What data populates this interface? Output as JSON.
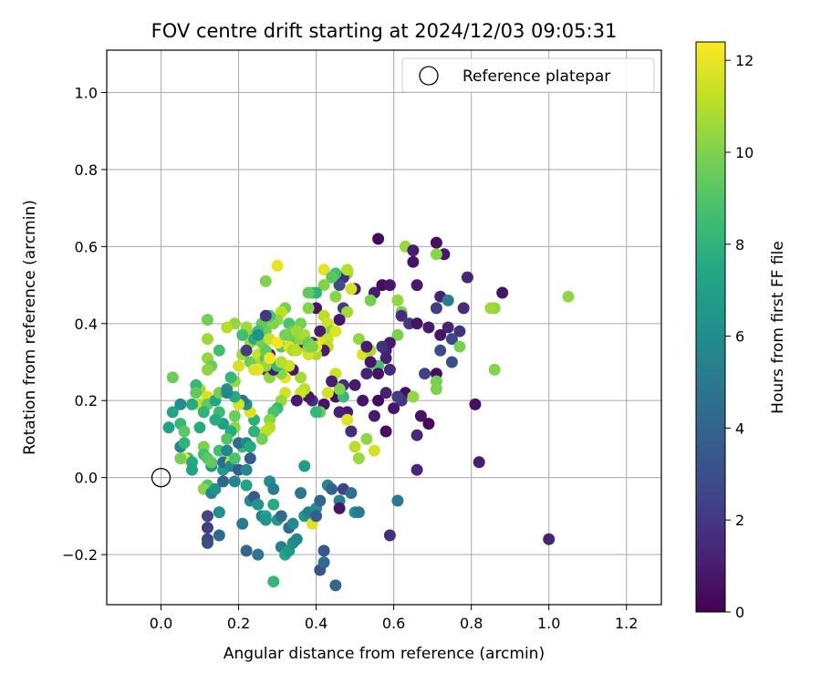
{
  "chart_data": {
    "type": "scatter",
    "title": "FOV centre drift starting at 2024/12/03 09:05:31",
    "xlabel": "Angular distance from reference (arcmin)",
    "ylabel": "Rotation from reference (arcmin)",
    "xlim": [
      -0.14,
      1.29
    ],
    "ylim": [
      -0.33,
      1.11
    ],
    "xticks": [
      0.0,
      0.2,
      0.4,
      0.6,
      0.8,
      1.0,
      1.2
    ],
    "xtick_labels": [
      "0.0",
      "0.2",
      "0.4",
      "0.6",
      "0.8",
      "1.0",
      "1.2"
    ],
    "yticks": [
      -0.2,
      0.0,
      0.2,
      0.4,
      0.6,
      0.8,
      1.0
    ],
    "ytick_labels": [
      "−0.2",
      "0.0",
      "0.2",
      "0.4",
      "0.6",
      "0.8",
      "1.0"
    ],
    "grid": true,
    "legend": {
      "placement": "top-right",
      "entries": [
        "Reference platepar"
      ]
    },
    "reference_point": {
      "x": 0.0,
      "y": 0.0
    },
    "colorbar": {
      "label": "Hours from first FF file",
      "colormap": "viridis",
      "range": [
        0,
        12.4
      ],
      "ticks": [
        0,
        2,
        4,
        6,
        8,
        10,
        12
      ],
      "tick_labels": [
        "0",
        "2",
        "4",
        "6",
        "8",
        "10",
        "12"
      ]
    },
    "points_xyc": [
      [
        0.56,
        0.62,
        0.3
      ],
      [
        0.63,
        0.6,
        10.5
      ],
      [
        0.71,
        0.61,
        0.5
      ],
      [
        0.65,
        0.59,
        1.0
      ],
      [
        0.73,
        0.58,
        0.8
      ],
      [
        0.65,
        0.56,
        0.6
      ],
      [
        0.71,
        0.58,
        10.2
      ],
      [
        0.79,
        0.52,
        1.4
      ],
      [
        0.72,
        0.47,
        1.2
      ],
      [
        0.74,
        0.46,
        5.2
      ],
      [
        0.88,
        0.48,
        0.7
      ],
      [
        0.86,
        0.44,
        10.4
      ],
      [
        0.85,
        0.44,
        10.6
      ],
      [
        1.05,
        0.47,
        10.3
      ],
      [
        0.78,
        0.44,
        1.6
      ],
      [
        0.71,
        0.44,
        2.2
      ],
      [
        0.66,
        0.5,
        0.9
      ],
      [
        0.57,
        0.5,
        0.4
      ],
      [
        0.59,
        0.5,
        0.8
      ],
      [
        0.55,
        0.48,
        1.0
      ],
      [
        0.61,
        0.46,
        10.4
      ],
      [
        0.62,
        0.43,
        9.8
      ],
      [
        0.62,
        0.42,
        1.5
      ],
      [
        0.64,
        0.4,
        2.0
      ],
      [
        0.66,
        0.4,
        0.6
      ],
      [
        0.69,
        0.39,
        0.9
      ],
      [
        0.74,
        0.39,
        1.3
      ],
      [
        0.77,
        0.38,
        1.8
      ],
      [
        0.72,
        0.37,
        0.7
      ],
      [
        0.75,
        0.36,
        2.6
      ],
      [
        0.61,
        0.37,
        9.9
      ],
      [
        0.58,
        0.33,
        1.2
      ],
      [
        0.59,
        0.35,
        0.9
      ],
      [
        0.57,
        0.34,
        1.7
      ],
      [
        0.72,
        0.33,
        2.8
      ],
      [
        0.77,
        0.34,
        9.9
      ],
      [
        0.75,
        0.3,
        3.0
      ],
      [
        0.58,
        0.31,
        1.1
      ],
      [
        0.55,
        0.29,
        9.6
      ],
      [
        0.56,
        0.29,
        8.8
      ],
      [
        0.59,
        0.28,
        1.5
      ],
      [
        0.68,
        0.27,
        2.3
      ],
      [
        0.71,
        0.27,
        0.5
      ],
      [
        0.71,
        0.25,
        9.8
      ],
      [
        0.71,
        0.23,
        10.0
      ],
      [
        0.63,
        0.22,
        0.4
      ],
      [
        0.65,
        0.21,
        10.4
      ],
      [
        0.6,
        0.18,
        0.7
      ],
      [
        0.62,
        0.2,
        1.9
      ],
      [
        0.67,
        0.16,
        0.6
      ],
      [
        0.69,
        0.14,
        0.3
      ],
      [
        0.66,
        0.11,
        1.5
      ],
      [
        0.81,
        0.19,
        0.5
      ],
      [
        0.82,
        0.04,
        1.0
      ],
      [
        0.86,
        0.28,
        10.1
      ],
      [
        0.66,
        0.02,
        1.3
      ],
      [
        0.61,
        0.21,
        2.2
      ],
      [
        1.0,
        -0.16,
        1.2
      ],
      [
        0.59,
        -0.15,
        1.7
      ],
      [
        0.61,
        -0.06,
        5.0
      ],
      [
        0.58,
        0.12,
        0.4
      ],
      [
        0.55,
        0.16,
        0.9
      ],
      [
        0.55,
        0.07,
        11.6
      ],
      [
        0.53,
        0.1,
        10.3
      ],
      [
        0.51,
        0.05,
        10.5
      ],
      [
        0.48,
        0.17,
        0.9
      ],
      [
        0.46,
        0.17,
        1.1
      ],
      [
        0.45,
        0.21,
        0.5
      ],
      [
        0.5,
        0.24,
        0.9
      ],
      [
        0.47,
        0.24,
        1.6
      ],
      [
        0.52,
        0.2,
        0.7
      ],
      [
        0.56,
        0.2,
        0.3
      ],
      [
        0.58,
        0.22,
        1.2
      ],
      [
        0.51,
        0.36,
        10.4
      ],
      [
        0.52,
        0.32,
        11.7
      ],
      [
        0.54,
        0.33,
        10.8
      ],
      [
        0.53,
        0.34,
        1.0
      ],
      [
        0.54,
        0.3,
        0.7
      ],
      [
        0.56,
        0.27,
        0.6
      ],
      [
        0.53,
        0.27,
        1.2
      ],
      [
        0.54,
        0.46,
        9.8
      ],
      [
        0.5,
        0.49,
        1.0
      ],
      [
        0.49,
        0.49,
        11.6
      ],
      [
        0.48,
        0.53,
        10.5
      ],
      [
        0.47,
        0.52,
        1.6
      ],
      [
        0.48,
        0.54,
        11.0
      ],
      [
        0.46,
        0.5,
        2.8
      ],
      [
        0.45,
        0.53,
        8.6
      ],
      [
        0.42,
        0.54,
        11.9
      ],
      [
        0.44,
        0.52,
        9.2
      ],
      [
        0.42,
        0.5,
        10.1
      ],
      [
        0.39,
        0.48,
        9.2
      ],
      [
        0.4,
        0.48,
        8.0
      ],
      [
        0.4,
        0.44,
        0.7
      ],
      [
        0.38,
        0.44,
        10.1
      ],
      [
        0.45,
        0.47,
        10.2
      ],
      [
        0.47,
        0.44,
        2.1
      ],
      [
        0.48,
        0.43,
        10.7
      ],
      [
        0.42,
        0.42,
        11.1
      ],
      [
        0.43,
        0.4,
        11.5
      ],
      [
        0.46,
        0.41,
        0.8
      ],
      [
        0.41,
        0.38,
        1.1
      ],
      [
        0.44,
        0.38,
        10.0
      ],
      [
        0.43,
        0.36,
        11.4
      ],
      [
        0.45,
        0.38,
        11.8
      ],
      [
        0.41,
        0.35,
        12.0
      ],
      [
        0.43,
        0.34,
        11.2
      ],
      [
        0.42,
        0.33,
        1.0
      ],
      [
        0.4,
        0.32,
        10.8
      ],
      [
        0.38,
        0.32,
        11.6
      ],
      [
        0.36,
        0.34,
        11.0
      ],
      [
        0.34,
        0.36,
        9.6
      ],
      [
        0.36,
        0.4,
        9.8
      ],
      [
        0.33,
        0.4,
        8.8
      ],
      [
        0.32,
        0.44,
        9.8
      ],
      [
        0.31,
        0.43,
        11.2
      ],
      [
        0.3,
        0.41,
        10.4
      ],
      [
        0.29,
        0.4,
        10.0
      ],
      [
        0.28,
        0.42,
        8.8
      ],
      [
        0.27,
        0.38,
        9.6
      ],
      [
        0.26,
        0.4,
        9.4
      ],
      [
        0.24,
        0.37,
        10.4
      ],
      [
        0.23,
        0.35,
        10.7
      ],
      [
        0.22,
        0.39,
        10.6
      ],
      [
        0.21,
        0.37,
        8.6
      ],
      [
        0.19,
        0.4,
        10.4
      ],
      [
        0.17,
        0.39,
        11.0
      ],
      [
        0.15,
        0.33,
        8.6
      ],
      [
        0.12,
        0.41,
        9.8
      ],
      [
        0.12,
        0.36,
        10.6
      ],
      [
        0.12,
        0.31,
        10.4
      ],
      [
        0.13,
        0.29,
        9.6
      ],
      [
        0.12,
        0.28,
        10.3
      ],
      [
        0.1,
        0.23,
        10.6
      ],
      [
        0.09,
        0.24,
        8.2
      ],
      [
        0.09,
        0.22,
        9.4
      ],
      [
        0.1,
        0.19,
        11.2
      ],
      [
        0.12,
        0.21,
        11.6
      ],
      [
        0.12,
        0.19,
        9.4
      ],
      [
        0.11,
        0.17,
        8.0
      ],
      [
        0.08,
        0.19,
        7.6
      ],
      [
        0.05,
        0.19,
        6.0
      ],
      [
        0.03,
        0.17,
        7.2
      ],
      [
        0.03,
        0.26,
        9.6
      ],
      [
        0.02,
        0.13,
        7.0
      ],
      [
        0.05,
        0.14,
        8.2
      ],
      [
        0.06,
        0.12,
        9.2
      ],
      [
        0.05,
        0.08,
        5.6
      ],
      [
        0.06,
        0.09,
        8.0
      ],
      [
        0.07,
        0.05,
        8.4
      ],
      [
        0.06,
        0.05,
        12.0
      ],
      [
        0.05,
        0.05,
        9.8
      ],
      [
        0.08,
        0.04,
        7.4
      ],
      [
        0.08,
        0.02,
        7.2
      ],
      [
        0.1,
        0.13,
        7.6
      ],
      [
        0.11,
        0.08,
        10.0
      ],
      [
        0.11,
        0.06,
        8.6
      ],
      [
        0.12,
        0.05,
        9.2
      ],
      [
        0.13,
        0.03,
        6.6
      ],
      [
        0.13,
        0.04,
        9.4
      ],
      [
        0.12,
        -0.02,
        9.0
      ],
      [
        0.11,
        -0.03,
        10.2
      ],
      [
        0.13,
        -0.04,
        5.6
      ],
      [
        0.14,
        -0.03,
        6.4
      ],
      [
        0.15,
        -0.09,
        5.4
      ],
      [
        0.12,
        -0.1,
        2.6
      ],
      [
        0.12,
        -0.13,
        2.2
      ],
      [
        0.12,
        -0.16,
        2.4
      ],
      [
        0.12,
        -0.17,
        3.0
      ],
      [
        0.15,
        -0.15,
        4.2
      ],
      [
        0.15,
        -0.09,
        6.2
      ],
      [
        0.16,
        -0.01,
        4.0
      ],
      [
        0.16,
        0.02,
        6.8
      ],
      [
        0.16,
        0.04,
        4.4
      ],
      [
        0.15,
        0.07,
        8.6
      ],
      [
        0.17,
        0.07,
        5.6
      ],
      [
        0.18,
        0.04,
        11.6
      ],
      [
        0.18,
        0.03,
        5.8
      ],
      [
        0.19,
        -0.01,
        5.6
      ],
      [
        0.19,
        0.05,
        8.8
      ],
      [
        0.2,
        0.02,
        3.6
      ],
      [
        0.21,
        0.08,
        8.2
      ],
      [
        0.2,
        0.09,
        4.4
      ],
      [
        0.22,
        0.09,
        5.8
      ],
      [
        0.23,
        0.08,
        7.6
      ],
      [
        0.23,
        0.05,
        3.6
      ],
      [
        0.22,
        0.02,
        5.8
      ],
      [
        0.22,
        -0.02,
        7.2
      ],
      [
        0.21,
        -0.12,
        5.0
      ],
      [
        0.22,
        -0.19,
        4.0
      ],
      [
        0.23,
        -0.06,
        5.8
      ],
      [
        0.24,
        -0.05,
        3.6
      ],
      [
        0.25,
        -0.07,
        6.4
      ],
      [
        0.25,
        -0.2,
        4.8
      ],
      [
        0.26,
        -0.1,
        5.2
      ],
      [
        0.27,
        -0.1,
        7.2
      ],
      [
        0.27,
        -0.11,
        6.6
      ],
      [
        0.28,
        -0.01,
        6.0
      ],
      [
        0.29,
        -0.03,
        5.2
      ],
      [
        0.29,
        -0.07,
        7.6
      ],
      [
        0.29,
        -0.27,
        8.2
      ],
      [
        0.3,
        -0.11,
        6.8
      ],
      [
        0.31,
        -0.1,
        4.2
      ],
      [
        0.31,
        -0.18,
        5.2
      ],
      [
        0.32,
        -0.2,
        7.2
      ],
      [
        0.33,
        -0.19,
        6.6
      ],
      [
        0.33,
        -0.13,
        4.4
      ],
      [
        0.34,
        -0.12,
        5.8
      ],
      [
        0.34,
        -0.17,
        6.0
      ],
      [
        0.35,
        -0.16,
        5.6
      ],
      [
        0.36,
        -0.04,
        4.8
      ],
      [
        0.37,
        -0.1,
        6.4
      ],
      [
        0.37,
        0.03,
        6.8
      ],
      [
        0.38,
        -0.09,
        5.2
      ],
      [
        0.39,
        -0.12,
        11.8
      ],
      [
        0.4,
        -0.08,
        6.0
      ],
      [
        0.4,
        -0.1,
        3.6
      ],
      [
        0.41,
        -0.06,
        4.0
      ],
      [
        0.41,
        -0.24,
        3.2
      ],
      [
        0.42,
        -0.19,
        3.4
      ],
      [
        0.42,
        -0.22,
        4.4
      ],
      [
        0.43,
        -0.02,
        5.6
      ],
      [
        0.44,
        -0.03,
        3.8
      ],
      [
        0.45,
        -0.28,
        4.0
      ],
      [
        0.46,
        -0.06,
        5.4
      ],
      [
        0.46,
        -0.08,
        0.8
      ],
      [
        0.47,
        -0.03,
        2.4
      ],
      [
        0.49,
        -0.04,
        4.6
      ],
      [
        0.5,
        -0.09,
        6.2
      ],
      [
        0.51,
        -0.09,
        5.0
      ],
      [
        0.5,
        0.08,
        11.2
      ],
      [
        0.49,
        0.12,
        1.6
      ],
      [
        0.48,
        0.15,
        11.8
      ],
      [
        0.47,
        0.21,
        8.4
      ],
      [
        0.46,
        0.23,
        10.0
      ],
      [
        0.45,
        0.27,
        11.4
      ],
      [
        0.44,
        0.25,
        1.0
      ],
      [
        0.43,
        0.22,
        11.6
      ],
      [
        0.42,
        0.19,
        0.7
      ],
      [
        0.41,
        0.17,
        9.6
      ],
      [
        0.4,
        0.17,
        8.2
      ],
      [
        0.39,
        0.2,
        1.6
      ],
      [
        0.38,
        0.21,
        0.8
      ],
      [
        0.37,
        0.23,
        11.1
      ],
      [
        0.36,
        0.22,
        11.4
      ],
      [
        0.35,
        0.2,
        0.9
      ],
      [
        0.36,
        0.26,
        10.7
      ],
      [
        0.34,
        0.28,
        0.8
      ],
      [
        0.33,
        0.29,
        11.4
      ],
      [
        0.32,
        0.26,
        12.0
      ],
      [
        0.31,
        0.27,
        10.2
      ],
      [
        0.32,
        0.22,
        11.6
      ],
      [
        0.31,
        0.2,
        10.5
      ],
      [
        0.3,
        0.18,
        8.4
      ],
      [
        0.29,
        0.17,
        8.8
      ],
      [
        0.28,
        0.15,
        10.2
      ],
      [
        0.28,
        0.13,
        11.0
      ],
      [
        0.27,
        0.12,
        11.2
      ],
      [
        0.26,
        0.1,
        9.8
      ],
      [
        0.24,
        0.12,
        8.0
      ],
      [
        0.24,
        0.15,
        7.8
      ],
      [
        0.23,
        0.17,
        11.8
      ],
      [
        0.22,
        0.19,
        6.0
      ],
      [
        0.21,
        0.2,
        4.8
      ],
      [
        0.2,
        0.19,
        11.6
      ],
      [
        0.19,
        0.16,
        9.6
      ],
      [
        0.19,
        0.13,
        10.2
      ],
      [
        0.18,
        0.12,
        7.6
      ],
      [
        0.17,
        0.1,
        9.0
      ],
      [
        0.16,
        0.14,
        7.0
      ],
      [
        0.15,
        0.17,
        8.4
      ],
      [
        0.14,
        0.15,
        7.6
      ],
      [
        0.14,
        0.2,
        7.2
      ],
      [
        0.15,
        0.22,
        9.8
      ],
      [
        0.17,
        0.23,
        6.2
      ],
      [
        0.19,
        0.21,
        7.6
      ],
      [
        0.19,
        0.25,
        10.4
      ],
      [
        0.18,
        0.26,
        8.2
      ],
      [
        0.17,
        0.22,
        5.8
      ],
      [
        0.2,
        0.29,
        11.6
      ],
      [
        0.21,
        0.32,
        10.6
      ],
      [
        0.22,
        0.33,
        2.2
      ],
      [
        0.23,
        0.3,
        9.6
      ],
      [
        0.25,
        0.32,
        11.4
      ],
      [
        0.26,
        0.3,
        10.7
      ],
      [
        0.27,
        0.31,
        9.0
      ],
      [
        0.28,
        0.32,
        1.4
      ],
      [
        0.27,
        0.28,
        1.9
      ],
      [
        0.28,
        0.26,
        10.3
      ],
      [
        0.29,
        0.28,
        1.0
      ],
      [
        0.3,
        0.29,
        8.4
      ],
      [
        0.31,
        0.3,
        11.0
      ],
      [
        0.31,
        0.34,
        9.2
      ],
      [
        0.33,
        0.34,
        11.8
      ],
      [
        0.34,
        0.33,
        10.8
      ],
      [
        0.35,
        0.33,
        11.2
      ],
      [
        0.37,
        0.35,
        1.2
      ],
      [
        0.38,
        0.34,
        10.4
      ],
      [
        0.39,
        0.35,
        0.8
      ],
      [
        0.4,
        0.34,
        12.2
      ],
      [
        0.27,
        0.29,
        10.4
      ],
      [
        0.25,
        0.28,
        12.0
      ],
      [
        0.24,
        0.28,
        11.8
      ],
      [
        0.24,
        0.36,
        7.6
      ],
      [
        0.25,
        0.38,
        8.6
      ],
      [
        0.26,
        0.35,
        9.8
      ],
      [
        0.27,
        0.33,
        9.4
      ],
      [
        0.28,
        0.36,
        11.4
      ],
      [
        0.3,
        0.35,
        12.2
      ],
      [
        0.32,
        0.37,
        9.8
      ],
      [
        0.34,
        0.38,
        9.8
      ],
      [
        0.36,
        0.36,
        10.3
      ],
      [
        0.37,
        0.37,
        10.8
      ],
      [
        0.38,
        0.35,
        9.6
      ],
      [
        0.39,
        0.34,
        10.0
      ],
      [
        0.3,
        0.55,
        12.0
      ],
      [
        0.27,
        0.51,
        10.0
      ],
      [
        0.38,
        0.48,
        9.4
      ],
      [
        0.35,
        0.38,
        10.6
      ],
      [
        0.28,
        0.31,
        12.2
      ],
      [
        0.25,
        0.37,
        6.2
      ],
      [
        0.27,
        0.42,
        2.0
      ]
    ]
  }
}
